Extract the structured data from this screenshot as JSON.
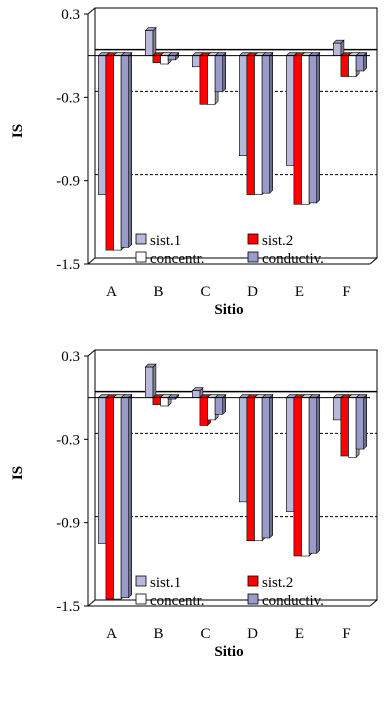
{
  "colors": {
    "sist1": "#b8b8d8",
    "sist2": "#ff0000",
    "concentr": "#ffffff",
    "conductiv": "#9b9bc9",
    "frame": "#000000"
  },
  "chart_data": [
    {
      "type": "bar",
      "categories": [
        "A",
        "B",
        "C",
        "D",
        "E",
        "F"
      ],
      "xlabel": "Sitio",
      "ylabel": "IS",
      "ylim": [
        -1.5,
        0.3
      ],
      "yticks": [
        "0.3",
        "-0.3",
        "-0.9",
        "-1.5"
      ],
      "grid": "dashed horizontal at -0.3 and -0.9",
      "legend_position": "bottom-center inside plot",
      "series": [
        {
          "name": "sist.1",
          "values": [
            -1.0,
            0.18,
            -0.08,
            -0.72,
            -0.79,
            0.09
          ]
        },
        {
          "name": "sist.2",
          "values": [
            -1.4,
            -0.05,
            -0.35,
            -1.0,
            -1.07,
            -0.15
          ]
        },
        {
          "name": "concentr.",
          "values": [
            -1.4,
            -0.06,
            -0.35,
            -1.0,
            -1.07,
            -0.15
          ]
        },
        {
          "name": "conductiv.",
          "values": [
            -1.38,
            -0.03,
            -0.26,
            -0.99,
            -1.06,
            -0.11
          ]
        }
      ]
    },
    {
      "type": "bar",
      "categories": [
        "A",
        "B",
        "C",
        "D",
        "E",
        "F"
      ],
      "xlabel": "Sitio",
      "ylabel": "IS",
      "ylim": [
        -1.5,
        0.3
      ],
      "yticks": [
        "0.3",
        "-0.3",
        "-0.9",
        "-1.5"
      ],
      "grid": "dashed horizontal at -0.3 and -0.9",
      "legend_position": "bottom-center inside plot",
      "series": [
        {
          "name": "sist.1",
          "values": [
            -1.05,
            0.22,
            0.05,
            -0.75,
            -0.82,
            -0.16
          ]
        },
        {
          "name": "sist.2",
          "values": [
            -1.45,
            -0.05,
            -0.2,
            -1.03,
            -1.14,
            -0.42
          ]
        },
        {
          "name": "concentr.",
          "values": [
            -1.45,
            -0.06,
            -0.16,
            -1.03,
            -1.14,
            -0.43
          ]
        },
        {
          "name": "conductiv.",
          "values": [
            -1.44,
            -0.01,
            -0.12,
            -1.01,
            -1.12,
            -0.37
          ]
        }
      ]
    }
  ]
}
